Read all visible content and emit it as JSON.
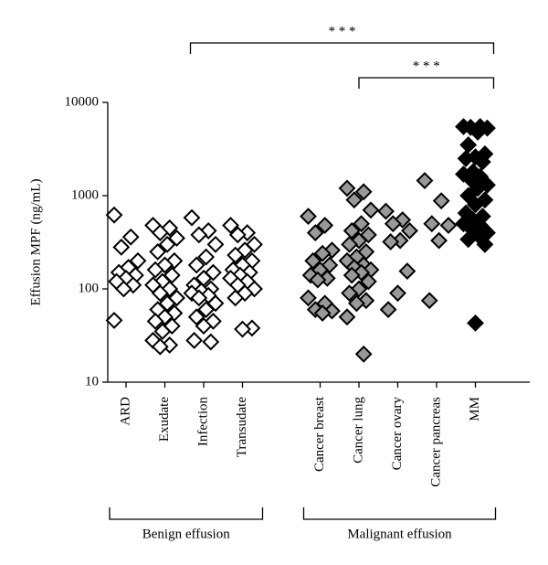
{
  "chart_data": {
    "type": "strip",
    "y_label": "Effusion MPF (ng/mL)",
    "yscale": "log",
    "ylim": [
      10,
      10000
    ],
    "yticks": [
      10,
      100,
      1000,
      10000
    ],
    "groups": [
      {
        "label": "Benign effusion",
        "fill": "#ffffff",
        "categories": [
          {
            "name": "ARD",
            "values": [
              620,
              360,
              280,
              200,
              170,
              150,
              140,
              130,
              120,
              110,
              100,
              46
            ]
          },
          {
            "name": "Exudate",
            "values": [
              480,
              450,
              400,
              350,
              300,
              250,
              200,
              180,
              160,
              140,
              120,
              110,
              100,
              90,
              80,
              70,
              60,
              55,
              50,
              45,
              40,
              35,
              28,
              25,
              24
            ]
          },
          {
            "name": "Infection",
            "values": [
              580,
              420,
              380,
              300,
              220,
              180,
              150,
              130,
              110,
              100,
              95,
              90,
              85,
              80,
              70,
              60,
              50,
              45,
              40,
              28,
              27
            ]
          },
          {
            "name": "Transudate",
            "values": [
              480,
              400,
              380,
              300,
              260,
              230,
              200,
              180,
              160,
              150,
              140,
              130,
              120,
              110,
              100,
              90,
              80,
              38,
              37
            ]
          }
        ]
      },
      {
        "label": "Malignant effusion",
        "fill": "#999999",
        "categories": [
          {
            "name": "Cancer breast",
            "values": [
              600,
              480,
              400,
              260,
              240,
              200,
              180,
              160,
              140,
              130,
              125,
              80,
              70,
              60,
              58,
              55
            ]
          },
          {
            "name": "Cancer lung",
            "values": [
              1200,
              1100,
              900,
              700,
              500,
              420,
              380,
              330,
              300,
              250,
              220,
              200,
              180,
              170,
              160,
              150,
              140,
              120,
              100,
              90,
              75,
              70,
              50,
              20
            ]
          },
          {
            "name": "Cancer ovary",
            "values": [
              680,
              550,
              500,
              420,
              330,
              320,
              155,
              90,
              60
            ]
          },
          {
            "name": "Cancer pancreas",
            "values": [
              1450,
              880,
              500,
              480,
              330,
              75
            ]
          },
          {
            "name": "MM",
            "fill": "#000000",
            "values": [
              5500,
              5500,
              5400,
              5300,
              4800,
              3500,
              2800,
              2600,
              2500,
              2300,
              1800,
              1700,
              1600,
              1500,
              1300,
              1200,
              1000,
              900,
              800,
              650,
              600,
              550,
              500,
              480,
              450,
              400,
              380,
              340,
              300,
              43
            ]
          }
        ]
      }
    ],
    "significance": [
      {
        "from": "Exudate",
        "to": "MM",
        "label": "* * *"
      },
      {
        "from": "Cancer lung",
        "to": "MM",
        "label": "* * *"
      }
    ]
  }
}
